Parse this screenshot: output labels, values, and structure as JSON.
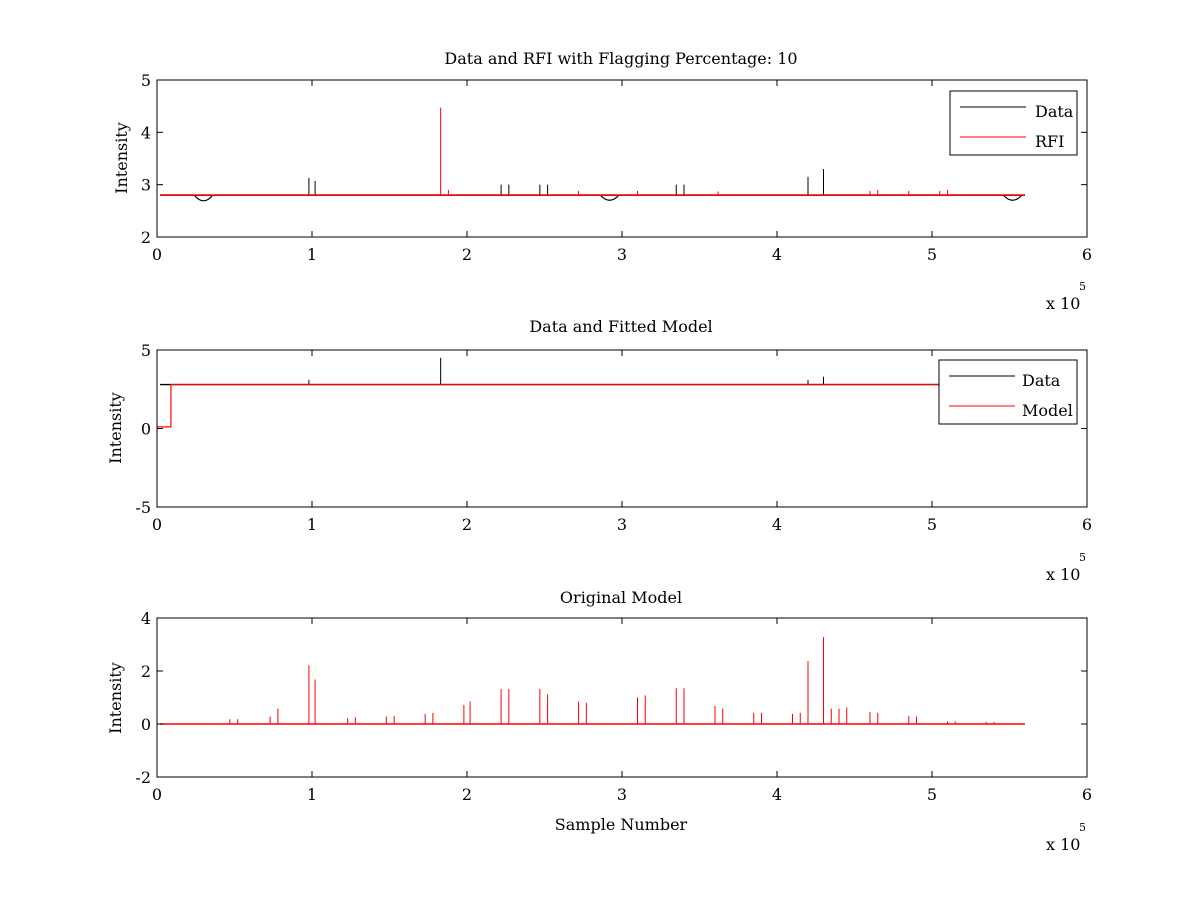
{
  "figure": {
    "background": "#ffffff"
  },
  "colors": {
    "data": "#000000",
    "rfi": "#ff0000",
    "model": "#ff0000"
  },
  "chart_data": [
    {
      "type": "line",
      "title": "Data and RFI with Flagging Percentage: 10",
      "xlabel": "",
      "ylabel": "Intensity",
      "xlim": [
        0,
        6
      ],
      "ylim": [
        2,
        5
      ],
      "xticks": [
        "0",
        "1",
        "2",
        "3",
        "4",
        "5",
        "6"
      ],
      "yticks": [
        "2",
        "3",
        "4",
        "5"
      ],
      "x_exponent": "x 10",
      "x_exponent_power": "5",
      "legend": {
        "placement": "top-right",
        "entries": [
          "Data",
          "RFI"
        ]
      },
      "series": [
        {
          "name": "Data",
          "baseline": 2.8,
          "x_end": 5.6,
          "spikes": [
            [
              0.98,
              3.13
            ],
            [
              1.02,
              3.07
            ],
            [
              2.22,
              3.0
            ],
            [
              2.27,
              3.0
            ],
            [
              2.47,
              3.0
            ],
            [
              2.52,
              3.0
            ],
            [
              3.35,
              3.0
            ],
            [
              3.4,
              3.0
            ],
            [
              4.2,
              3.15
            ],
            [
              4.3,
              3.3
            ]
          ],
          "dips": [
            [
              0.3,
              2.66
            ],
            [
              2.92,
              2.68
            ],
            [
              5.52,
              2.68
            ]
          ]
        },
        {
          "name": "RFI",
          "baseline": 2.8,
          "x_end": 5.6,
          "spikes": [
            [
              1.83,
              4.47
            ],
            [
              1.88,
              2.9
            ],
            [
              2.72,
              2.88
            ],
            [
              3.1,
              2.88
            ],
            [
              3.62,
              2.87
            ],
            [
              4.6,
              2.88
            ],
            [
              4.65,
              2.9
            ],
            [
              4.85,
              2.88
            ],
            [
              5.05,
              2.88
            ],
            [
              5.1,
              2.9
            ]
          ]
        }
      ]
    },
    {
      "type": "line",
      "title": "Data and Fitted Model",
      "xlabel": "",
      "ylabel": "Intensity",
      "xlim": [
        0,
        6
      ],
      "ylim": [
        -5,
        5
      ],
      "xticks": [
        "0",
        "1",
        "2",
        "3",
        "4",
        "5",
        "6"
      ],
      "yticks": [
        "-5",
        "0",
        "5"
      ],
      "x_exponent": "x 10",
      "x_exponent_power": "5",
      "legend": {
        "placement": "top-right",
        "entries": [
          "Data",
          "Model"
        ]
      },
      "series": [
        {
          "name": "Data",
          "baseline": 2.8,
          "x_end": 5.6,
          "spikes": [
            [
              1.83,
              4.5
            ],
            [
              0.98,
              3.1
            ],
            [
              4.3,
              3.3
            ],
            [
              4.2,
              3.1
            ]
          ]
        },
        {
          "name": "Model",
          "baseline": 2.8,
          "x_end": 5.6,
          "step": [
            [
              0,
              0.1
            ],
            [
              0.09,
              0.1
            ],
            [
              0.09,
              2.8
            ]
          ]
        }
      ]
    },
    {
      "type": "line",
      "title": "Original Model",
      "xlabel": "Sample Number",
      "ylabel": "Intensity",
      "xlim": [
        0,
        6
      ],
      "ylim": [
        -2,
        4
      ],
      "xticks": [
        "0",
        "1",
        "2",
        "3",
        "4",
        "5",
        "6"
      ],
      "yticks": [
        "-2",
        "0",
        "2",
        "4"
      ],
      "x_exponent": "x 10",
      "x_exponent_power": "5",
      "series": [
        {
          "name": "",
          "baseline": 0,
          "x_end": 5.6,
          "spikes": [
            [
              0.47,
              0.18
            ],
            [
              0.52,
              0.18
            ],
            [
              0.73,
              0.28
            ],
            [
              0.78,
              0.58
            ],
            [
              0.98,
              2.22
            ],
            [
              1.02,
              1.68
            ],
            [
              1.23,
              0.22
            ],
            [
              1.28,
              0.25
            ],
            [
              1.48,
              0.28
            ],
            [
              1.53,
              0.3
            ],
            [
              1.73,
              0.38
            ],
            [
              1.78,
              0.42
            ],
            [
              1.98,
              0.72
            ],
            [
              2.02,
              0.85
            ],
            [
              2.22,
              1.32
            ],
            [
              2.27,
              1.32
            ],
            [
              2.47,
              1.32
            ],
            [
              2.52,
              1.12
            ],
            [
              2.72,
              0.85
            ],
            [
              2.77,
              0.8
            ],
            [
              3.1,
              1.0
            ],
            [
              3.15,
              1.08
            ],
            [
              3.35,
              1.35
            ],
            [
              3.4,
              1.35
            ],
            [
              3.6,
              0.68
            ],
            [
              3.65,
              0.58
            ],
            [
              3.85,
              0.42
            ],
            [
              3.9,
              0.42
            ],
            [
              4.1,
              0.38
            ],
            [
              4.15,
              0.42
            ],
            [
              4.2,
              2.38
            ],
            [
              4.3,
              3.28
            ],
            [
              4.35,
              0.58
            ],
            [
              4.4,
              0.58
            ],
            [
              4.45,
              0.62
            ],
            [
              4.6,
              0.45
            ],
            [
              4.65,
              0.42
            ],
            [
              4.85,
              0.3
            ],
            [
              4.9,
              0.28
            ],
            [
              5.1,
              0.1
            ],
            [
              5.15,
              0.1
            ],
            [
              5.35,
              0.08
            ],
            [
              5.4,
              0.08
            ]
          ]
        }
      ]
    }
  ]
}
